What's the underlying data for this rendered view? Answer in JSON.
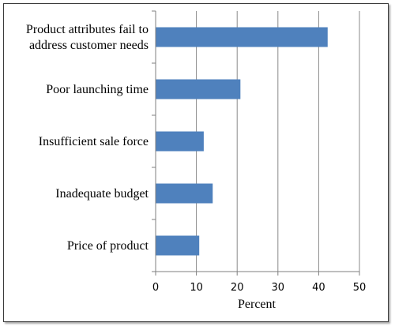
{
  "chart_data": {
    "type": "bar",
    "orientation": "horizontal",
    "categories": [
      "Product attributes fail to address customer needs",
      "Poor launching time",
      "Insufficient sale force",
      "Inadequate budget",
      "Price of product"
    ],
    "category_label_lines": [
      [
        "Product attributes fail to",
        "address customer needs"
      ],
      [
        "Poor launching time"
      ],
      [
        "Insufficient sale force"
      ],
      [
        "Inadequate budget"
      ],
      [
        "Price of product"
      ]
    ],
    "values": [
      42.2,
      20.8,
      11.8,
      14,
      10.7
    ],
    "xlabel": "Percent",
    "xlim": [
      0,
      50
    ],
    "xticks": [
      "0",
      "10",
      "20",
      "30",
      "40",
      "50"
    ],
    "grid": "vertical",
    "colors": {
      "bar": "#4f81bd",
      "grid": "#8a8a8a",
      "axis": "#7f7f7f"
    }
  }
}
